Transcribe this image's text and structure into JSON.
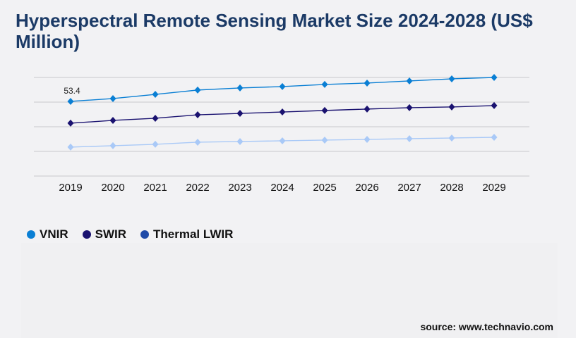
{
  "title": "Hyperspectral Remote Sensing Market Size 2024-2028 (US$ Million)",
  "source": "source: www.technavio.com",
  "chart_data": {
    "type": "line",
    "title": "Hyperspectral Remote Sensing Market Size 2024-2028 (US$ Million)",
    "x": [
      "2019",
      "2020",
      "2021",
      "2022",
      "2023",
      "2024",
      "2025",
      "2026",
      "2027",
      "2028",
      "2029"
    ],
    "ylim": [
      0,
      70.5
    ],
    "grid": true,
    "legend_position": "bottom-left",
    "series": [
      {
        "name": "VNIR",
        "color": "#0a7fd4",
        "legend_color": "#0a7fd4",
        "values": [
          53.4,
          55.4,
          58.4,
          61.5,
          63.0,
          64.0,
          65.5,
          66.5,
          68.0,
          69.5,
          70.5
        ]
      },
      {
        "name": "SWIR",
        "color": "#1a1270",
        "legend_color": "#1a1270",
        "values": [
          37.8,
          39.8,
          41.3,
          43.8,
          44.8,
          45.8,
          46.9,
          47.9,
          48.9,
          49.4,
          50.4
        ]
      },
      {
        "name": "Thermal LWIR",
        "color": "#a9c9f7",
        "legend_color": "#1f4aa8",
        "values": [
          20.7,
          21.7,
          22.7,
          24.2,
          24.7,
          25.2,
          25.7,
          26.2,
          26.7,
          27.2,
          27.7
        ]
      }
    ],
    "annotations": [
      {
        "series": "VNIR",
        "x": "2019",
        "label": "53.4"
      }
    ]
  }
}
